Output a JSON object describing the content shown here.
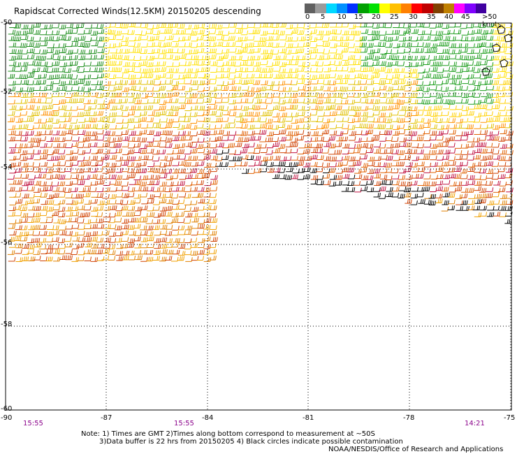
{
  "title": "Rapidscat Corrected Winds(12.5KM) 20150205 descending",
  "legend": {
    "colors": [
      "#606060",
      "#9a9a9a",
      "#00d8ff",
      "#0090ff",
      "#0030ff",
      "#00a000",
      "#00e000",
      "#ffff00",
      "#ffc000",
      "#ff8000",
      "#ff0000",
      "#c00000",
      "#804000",
      "#c08000",
      "#ff00ff",
      "#8000ff",
      "#4000a0"
    ],
    "labels": [
      "0",
      "5",
      "10",
      "15",
      "20",
      "25",
      "30",
      "35",
      "40",
      "45",
      ">50 knots"
    ]
  },
  "axes": {
    "x_labels": [
      "-90",
      "-87",
      "-84",
      "-81",
      "-78",
      "-75"
    ],
    "y_labels": [
      "-50",
      "-52",
      "-54",
      "-56",
      "-58",
      "-60"
    ],
    "lon_range": [
      -90,
      -75
    ],
    "lat_range": [
      -50,
      -60
    ]
  },
  "times": [
    "15:55",
    "15:55",
    "14:21"
  ],
  "notes": {
    "line1": "Note: 1) Times are GMT 2)Times along bottom correspond to measurement at ~50S",
    "line2": "3)Data buffer is 22 hrs from 20150205 4) Black circles indicate possible contamination",
    "line3": "NOAA/NESDIS/Office of Research and Applications"
  }
}
